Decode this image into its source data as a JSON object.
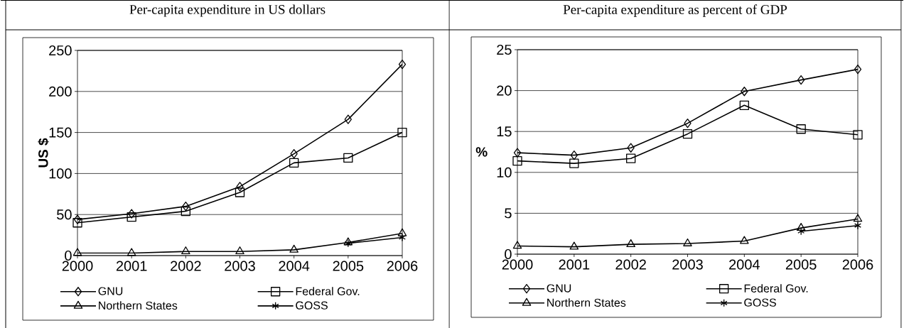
{
  "chart_data": [
    {
      "type": "line",
      "title": "Per-capita expenditure in US dollars",
      "ylabel": "US $",
      "x": [
        2000,
        2001,
        2002,
        2003,
        2004,
        2005,
        2006
      ],
      "series": [
        {
          "name": "GNU",
          "color": "#000000",
          "marker": "diamond",
          "values": [
            44,
            51,
            60,
            84,
            124,
            166,
            233
          ]
        },
        {
          "name": "Federal Gov.",
          "color": "#000000",
          "marker": "square",
          "values": [
            40,
            47,
            54,
            77,
            113,
            119,
            150
          ]
        },
        {
          "name": "Northern States",
          "color": "#000000",
          "marker": "triangle",
          "values": [
            3,
            3,
            5,
            5,
            7,
            16,
            27
          ]
        },
        {
          "name": "GOSS",
          "color": "#000000",
          "marker": "cross",
          "values": [
            null,
            null,
            null,
            null,
            null,
            15,
            22
          ]
        }
      ],
      "xlim": [
        2000,
        2006
      ],
      "xticks": [
        2000,
        2001,
        2002,
        2003,
        2004,
        2005,
        2006
      ],
      "ylim": [
        0,
        250
      ],
      "yticks": [
        0,
        50,
        100,
        150,
        200,
        250
      ],
      "grid": "y",
      "legend": "bottom",
      "line_style": "solid"
    },
    {
      "type": "line",
      "title": "Per-capita expenditure as percent of GDP",
      "ylabel": "%",
      "x": [
        2000,
        2001,
        2002,
        2003,
        2004,
        2005,
        2006
      ],
      "series": [
        {
          "name": "GNU",
          "color": "#000000",
          "marker": "diamond",
          "values": [
            12.4,
            12.1,
            13.0,
            16.0,
            19.9,
            21.3,
            22.6
          ]
        },
        {
          "name": "Federal Gov.",
          "color": "#000000",
          "marker": "square",
          "values": [
            11.4,
            11.1,
            11.7,
            14.7,
            18.2,
            15.3,
            14.6
          ]
        },
        {
          "name": "Northern States",
          "color": "#000000",
          "marker": "triangle",
          "values": [
            1.0,
            0.9,
            1.2,
            1.3,
            1.6,
            3.2,
            4.3
          ]
        },
        {
          "name": "GOSS",
          "color": "#000000",
          "marker": "cross",
          "values": [
            null,
            null,
            null,
            null,
            null,
            2.8,
            3.5
          ]
        }
      ],
      "xlim": [
        2000,
        2006
      ],
      "xticks": [
        2000,
        2001,
        2002,
        2003,
        2004,
        2005,
        2006
      ],
      "ylim": [
        0,
        25
      ],
      "yticks": [
        0,
        5,
        10,
        15,
        20,
        25
      ],
      "grid": "y",
      "legend": "bottom",
      "line_style": "solid"
    }
  ]
}
